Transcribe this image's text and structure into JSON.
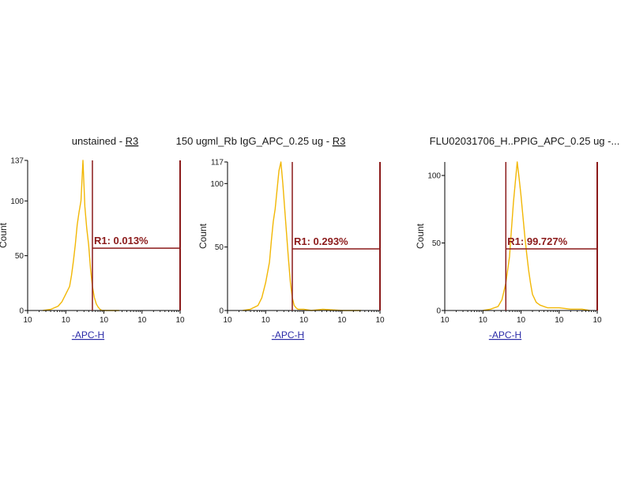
{
  "colors": {
    "histogram": "#f2b705",
    "gate": "#8b1a1a",
    "axis": "#000000",
    "axis_label": "#2a2aa8"
  },
  "chart_data": [
    {
      "type": "histogram",
      "title": "unstained - ",
      "title_gate": "R3",
      "xlabel": "-APC-H",
      "ylabel": "Count",
      "x_scale": "log",
      "xlim": [
        1,
        10000
      ],
      "xticks": [
        "10",
        "10",
        "10",
        "10",
        "10"
      ],
      "ylim": [
        0,
        137
      ],
      "yticks": [
        0,
        50,
        100,
        137
      ],
      "gate": {
        "name": "R1",
        "percent_label": "R1: 0.013%",
        "x_range": [
          50,
          10000
        ]
      },
      "histogram": {
        "log_x": [
          0.4,
          0.6,
          0.8,
          0.9,
          1.0,
          1.1,
          1.15,
          1.2,
          1.25,
          1.3,
          1.35,
          1.4,
          1.45,
          1.5,
          1.55,
          1.6,
          1.65,
          1.7,
          1.75,
          1.8,
          1.85,
          1.9,
          1.95,
          2.0,
          2.1,
          2.2,
          2.4
        ],
        "counts": [
          0,
          1,
          4,
          8,
          15,
          22,
          32,
          45,
          60,
          78,
          90,
          100,
          137,
          95,
          75,
          60,
          38,
          22,
          12,
          6,
          3,
          1,
          0,
          0,
          0,
          0,
          0
        ]
      }
    },
    {
      "type": "histogram",
      "title": "150 ugml_Rb IgG_APC_0.25 ug - ",
      "title_gate": "R3",
      "xlabel": "-APC-H",
      "ylabel": "Count",
      "x_scale": "log",
      "xlim": [
        1,
        10000
      ],
      "xticks": [
        "10",
        "10",
        "10",
        "10",
        "10"
      ],
      "ylim": [
        0,
        117
      ],
      "yticks": [
        0,
        50,
        100,
        117
      ],
      "gate": {
        "name": "R1",
        "percent_label": "R1: 0.293%",
        "x_range": [
          50,
          10000
        ]
      },
      "histogram": {
        "log_x": [
          0.4,
          0.6,
          0.8,
          0.9,
          1.0,
          1.1,
          1.15,
          1.2,
          1.25,
          1.3,
          1.35,
          1.4,
          1.45,
          1.5,
          1.55,
          1.6,
          1.65,
          1.7,
          1.75,
          1.8,
          1.85,
          1.9,
          2.0,
          2.2,
          2.5,
          3.0,
          3.5
        ],
        "counts": [
          0,
          1,
          4,
          10,
          22,
          38,
          55,
          70,
          80,
          95,
          110,
          117,
          100,
          80,
          60,
          40,
          22,
          10,
          4,
          2,
          1,
          1,
          1,
          0,
          1,
          0,
          0
        ]
      }
    },
    {
      "type": "histogram",
      "title": "FLU02031706_H..PPIG_APC_0.25 ug -...",
      "title_gate": "",
      "xlabel": "-APC-H",
      "ylabel": "Count",
      "x_scale": "log",
      "xlim": [
        1,
        10000
      ],
      "xticks": [
        "10",
        "10",
        "10",
        "10",
        "10"
      ],
      "ylim": [
        0,
        110
      ],
      "yticks": [
        0,
        50,
        100
      ],
      "gate": {
        "name": "R1",
        "percent_label": "R1: 99.727%",
        "x_range": [
          40,
          10000
        ]
      },
      "histogram": {
        "log_x": [
          1.0,
          1.2,
          1.4,
          1.5,
          1.6,
          1.7,
          1.75,
          1.8,
          1.85,
          1.9,
          1.95,
          2.0,
          2.05,
          2.1,
          2.15,
          2.2,
          2.25,
          2.3,
          2.4,
          2.5,
          2.7,
          3.0,
          3.3,
          3.6,
          3.8
        ],
        "counts": [
          0,
          1,
          3,
          8,
          20,
          40,
          60,
          80,
          95,
          110,
          98,
          85,
          70,
          55,
          42,
          30,
          20,
          12,
          6,
          4,
          2,
          2,
          1,
          1,
          0
        ]
      }
    }
  ]
}
